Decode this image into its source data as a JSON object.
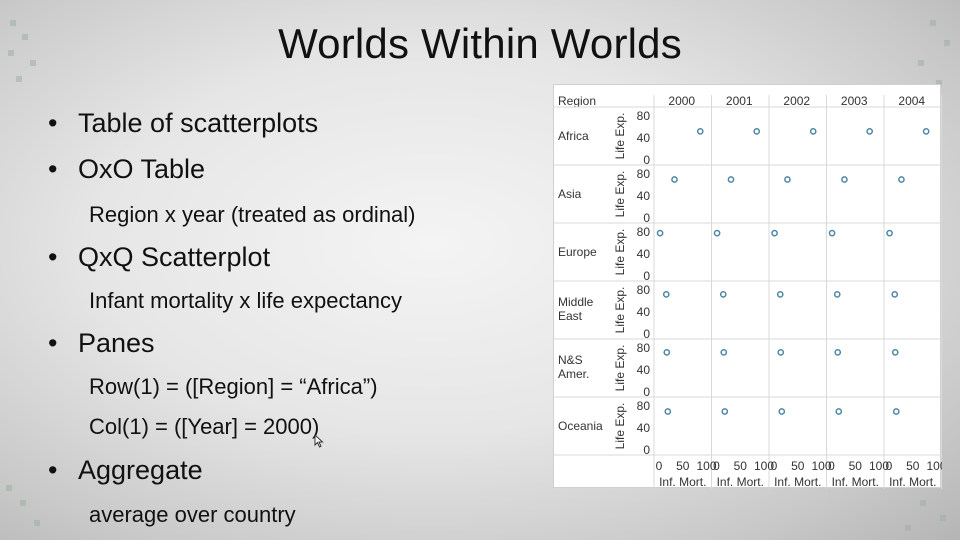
{
  "slide": {
    "title": "Worlds Within Worlds",
    "bullets": [
      {
        "text": "Table of scatterplots",
        "subs": []
      },
      {
        "text": "OxO Table",
        "subs": [
          "Region x year (treated as ordinal)"
        ]
      },
      {
        "text": "QxQ Scatterplot",
        "subs": [
          "Infant mortality x life expectancy"
        ]
      },
      {
        "text": "Panes",
        "subs": [
          "Row(1) =  ([Region] = “Africa”)",
          "Col(1) = ([Year] = 2000)"
        ]
      },
      {
        "text": "Aggregate",
        "subs": [
          "average over country"
        ]
      }
    ]
  },
  "colors": {
    "point": "#4e86a6",
    "grid": "#d9d9d9",
    "text": "#333333"
  },
  "chart_data": {
    "type": "scatter",
    "row_header": "Region",
    "years": [
      "2000",
      "2001",
      "2002",
      "2003",
      "2004"
    ],
    "regions": [
      "Africa",
      "Asia",
      "Europe",
      "Middle East",
      "N&S Amer.",
      "Oceania"
    ],
    "ylabel": "Life Exp.",
    "xlabel": "Inf. Mort.",
    "y_ticks": [
      "80",
      "40",
      "0"
    ],
    "x_ticks": [
      "0",
      "50",
      "100"
    ],
    "xlim": [
      0,
      100
    ],
    "ylim": [
      0,
      80
    ],
    "points": {
      "Africa": [
        [
          84,
          52
        ],
        [
          82,
          52
        ],
        [
          80,
          52
        ],
        [
          78,
          52
        ],
        [
          76,
          52
        ]
      ],
      "Asia": [
        [
          34,
          70
        ],
        [
          32,
          70
        ],
        [
          30,
          70
        ],
        [
          29,
          70
        ],
        [
          28,
          70
        ]
      ],
      "Europe": [
        [
          6,
          78
        ],
        [
          5,
          78
        ],
        [
          5,
          78
        ],
        [
          5,
          78
        ],
        [
          5,
          78
        ]
      ],
      "Middle East": [
        [
          18,
          72
        ],
        [
          17,
          72
        ],
        [
          16,
          72
        ],
        [
          15,
          72
        ],
        [
          15,
          72
        ]
      ],
      "N&S Amer.": [
        [
          19,
          72
        ],
        [
          18,
          72
        ],
        [
          17,
          72
        ],
        [
          16,
          72
        ],
        [
          16,
          72
        ]
      ],
      "Oceania": [
        [
          21,
          70
        ],
        [
          20,
          70
        ],
        [
          19,
          70
        ],
        [
          18,
          70
        ],
        [
          18,
          70
        ]
      ]
    }
  }
}
